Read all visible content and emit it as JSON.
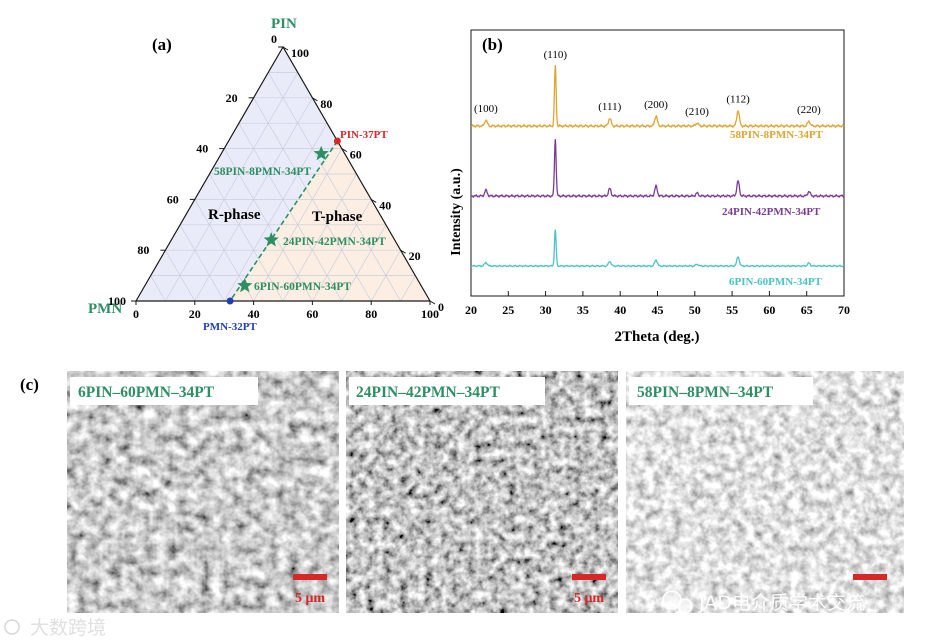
{
  "colors": {
    "teal": "#2e8f64",
    "red": "#d62828",
    "blue": "#1f3fb8",
    "gold": "#e1a431",
    "purple": "#7b3c93",
    "cyan": "#4cc2c4",
    "axis": "#1a1a1a",
    "rphase": "#dfe4f5",
    "tphase": "#fbe7d6"
  },
  "panel_a": {
    "label": "(a)",
    "vertex_top": "PIN",
    "vertex_left": "PMN",
    "left_ticks": [
      "0",
      "20",
      "40",
      "60",
      "80",
      "100"
    ],
    "right_ticks": [
      "100",
      "80",
      "60",
      "40",
      "20",
      "0"
    ],
    "bottom_ticks": [
      "0",
      "20",
      "40",
      "60",
      "80",
      "100"
    ],
    "r_phase": "R-phase",
    "t_phase": "T-phase",
    "pin37": "PIN-37PT",
    "pmn32": "PMN-32PT",
    "compositions": [
      {
        "label": "58PIN-8PMN-34PT",
        "pin": 58,
        "pmn": 8,
        "pt": 34
      },
      {
        "label": "24PIN-42PMN-34PT",
        "pin": 24,
        "pmn": 42,
        "pt": 34
      },
      {
        "label": "6PIN-60PMN-34PT",
        "pin": 6,
        "pmn": 60,
        "pt": 34
      }
    ],
    "endpoints": {
      "pin37": {
        "pin": 63,
        "pmn": 0,
        "pt": 37
      },
      "pmn32": {
        "pin": 0,
        "pmn": 68,
        "pt": 32
      }
    }
  },
  "chart_data": {
    "type": "line",
    "title": "(b)",
    "xlabel": "2Theta (deg.)",
    "ylabel": "Intensity (a.u.)",
    "xlim": [
      20,
      70
    ],
    "xticks": [
      20,
      25,
      30,
      35,
      40,
      45,
      50,
      55,
      60,
      65,
      70
    ],
    "peaks": [
      {
        "hkl": "(100)",
        "x": 22.0,
        "h": 0.1
      },
      {
        "hkl": "(110)",
        "x": 31.3,
        "h": 1.0
      },
      {
        "hkl": "(111)",
        "x": 38.6,
        "h": 0.13
      },
      {
        "hkl": "(200)",
        "x": 44.8,
        "h": 0.17
      },
      {
        "hkl": "(210)",
        "x": 50.3,
        "h": 0.05
      },
      {
        "hkl": "(112)",
        "x": 55.8,
        "h": 0.26
      },
      {
        "hkl": "(220)",
        "x": 65.3,
        "h": 0.08
      }
    ],
    "series": [
      {
        "name": "58PIN-8PMN-34PT",
        "color": "#e1a431",
        "offset": 2,
        "scale": 1.0
      },
      {
        "name": "24PIN-42PMN-34PT",
        "color": "#7b3c93",
        "offset": 1,
        "scale": 0.95
      },
      {
        "name": "6PIN-60PMN-34PT",
        "color": "#4cc2c4",
        "offset": 0,
        "scale": 0.6
      }
    ]
  },
  "panel_c": {
    "label": "(c)",
    "images": [
      {
        "title": "6PIN–60PMN–34PT",
        "scale": "5 μm"
      },
      {
        "title": "24PIN–42PMN–34PT",
        "scale": "5 μm"
      },
      {
        "title": "58PIN–8PMN–34PT",
        "scale": ""
      }
    ]
  },
  "watermarks": {
    "left": "大数跨境",
    "right": "JAD电介质学术交流"
  }
}
